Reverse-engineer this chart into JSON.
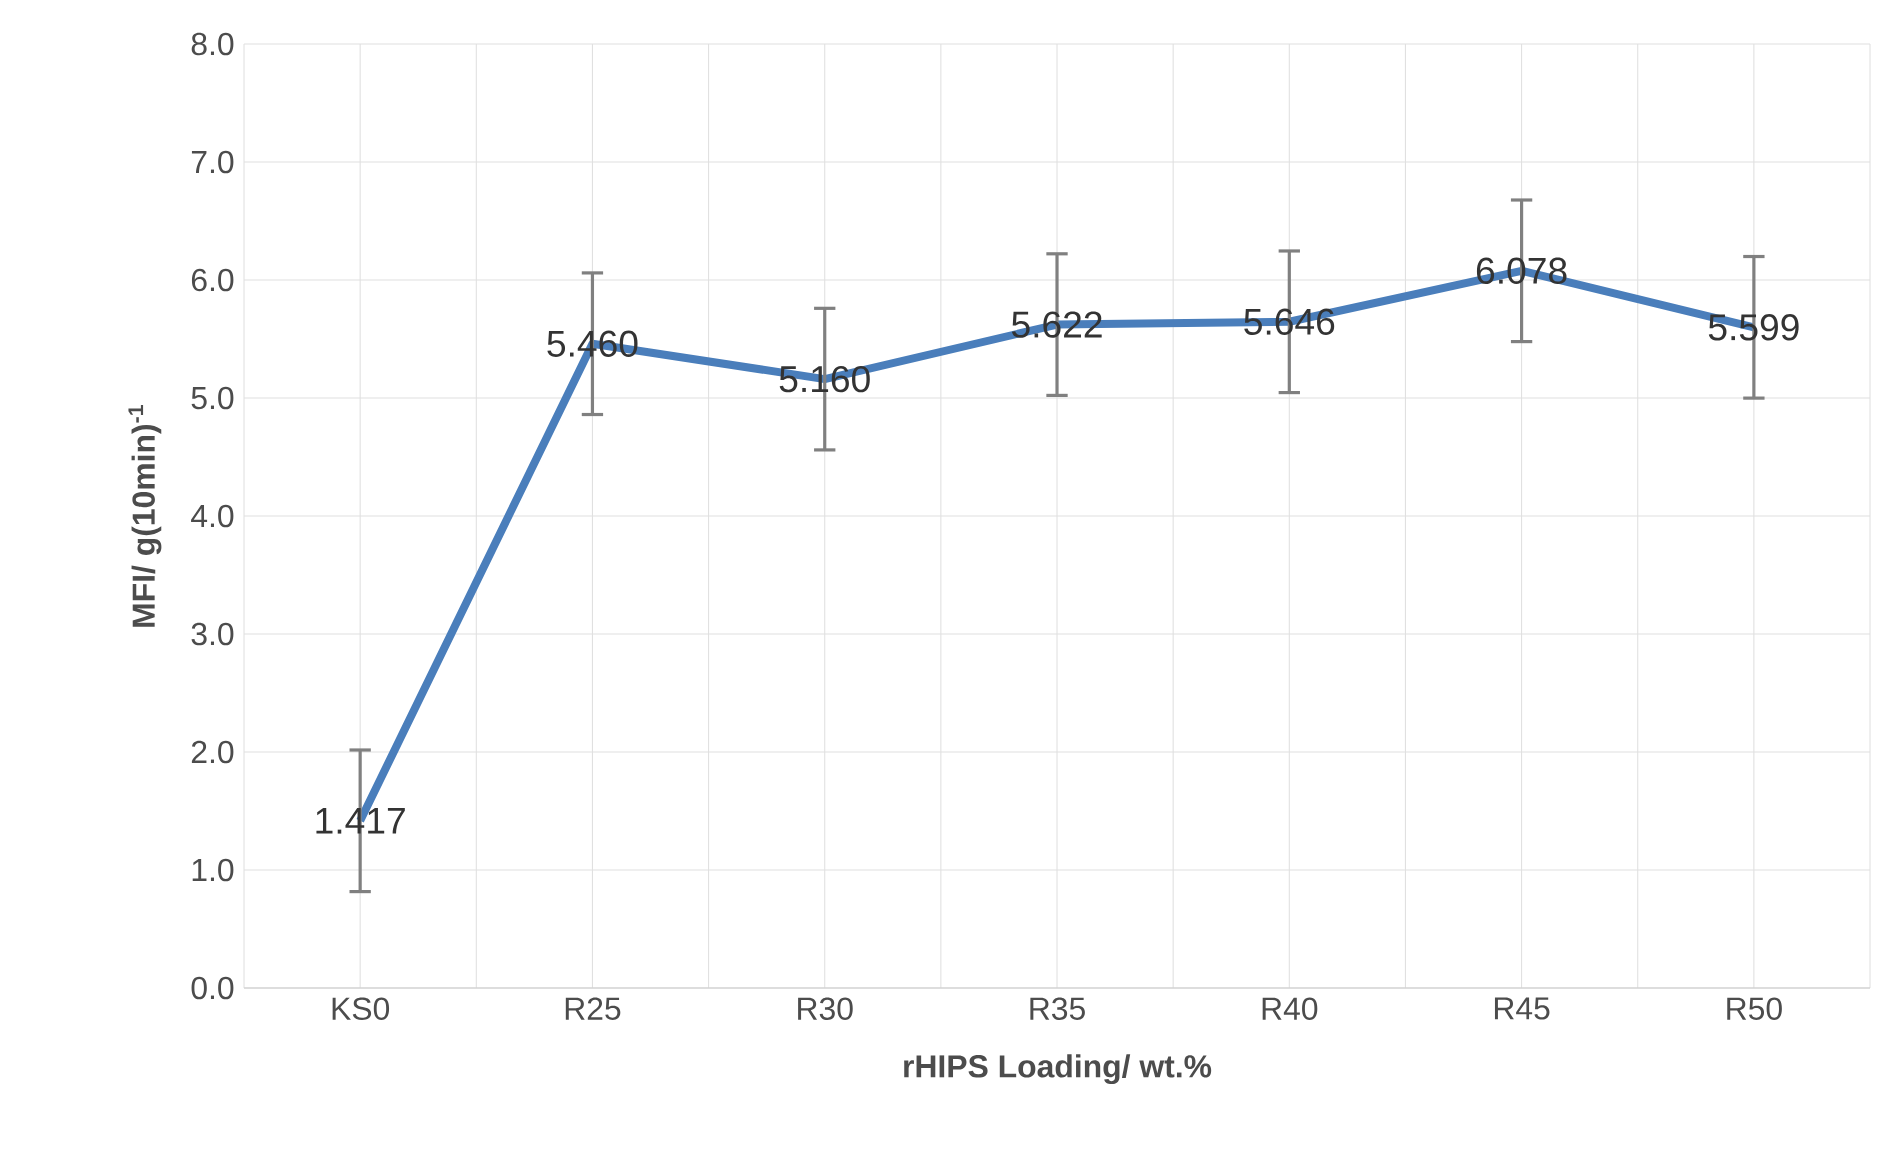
{
  "chart_data": {
    "type": "line",
    "xlabel": "rHIPS Loading/ wt.%",
    "ylabel": "MFI/ g(10min)$^{-1}$",
    "categories": [
      "KS0",
      "R25",
      "R30",
      "R35",
      "R40",
      "R45",
      "R50"
    ],
    "values": [
      1.417,
      5.46,
      5.16,
      5.622,
      5.646,
      6.078,
      5.599
    ],
    "errors": [
      0.6,
      0.6,
      0.6,
      0.6,
      0.6,
      0.6,
      0.6
    ],
    "value_labels": [
      "1.417",
      "5.460",
      "5.160",
      "5.622",
      "5.646",
      "6.078",
      "5.599"
    ],
    "color": "#4a7ebb",
    "grid": true,
    "marker": "none",
    "line_style": "solid",
    "ylim": [
      0,
      8
    ],
    "yticks": [
      {
        "value": 0,
        "label": "0.0"
      },
      {
        "value": 1,
        "label": "1.0"
      },
      {
        "value": 2,
        "label": "2.0"
      },
      {
        "value": 3,
        "label": "3.0"
      },
      {
        "value": 4,
        "label": "4.0"
      },
      {
        "value": 5,
        "label": "5.0"
      },
      {
        "value": 6,
        "label": "6.0"
      },
      {
        "value": 7,
        "label": "7.0"
      },
      {
        "value": 8,
        "label": "8.0"
      }
    ]
  }
}
